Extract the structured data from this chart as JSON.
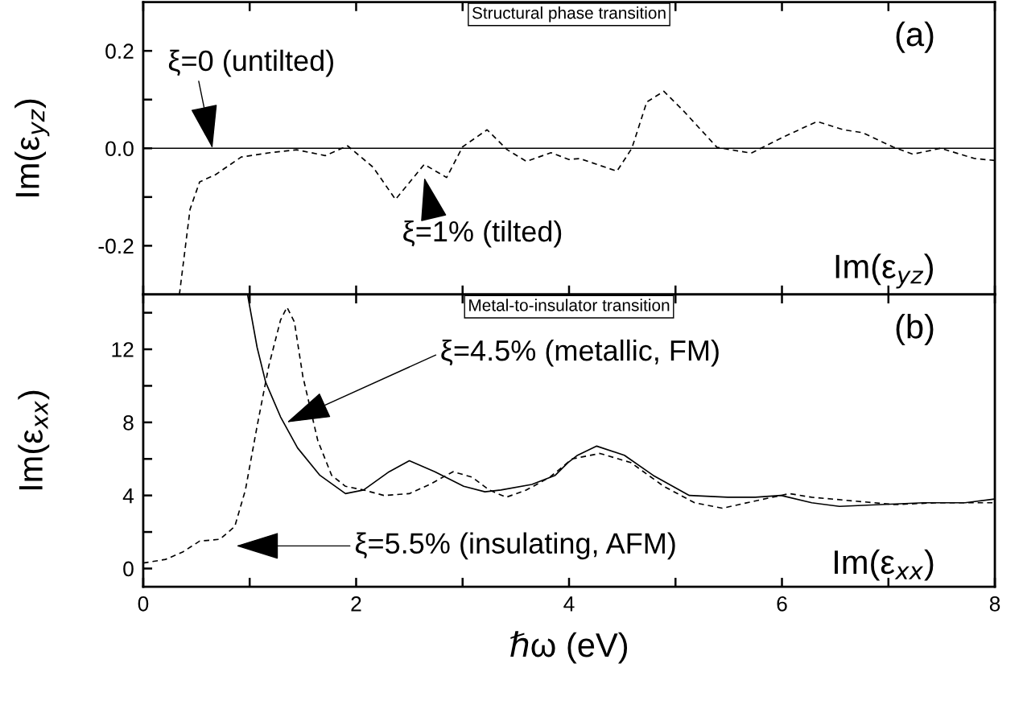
{
  "chart_data": [
    {
      "type": "line",
      "ylabel": "Im(ε$_{yz}$)",
      "xlim": [
        0,
        8
      ],
      "ylim": [
        -0.3,
        0.3
      ],
      "xticks": [
        0,
        {
          "value": 1,
          "label": null
        },
        2,
        {
          "value": 3,
          "label": null
        },
        4,
        {
          "value": 5,
          "label": null
        },
        6,
        {
          "value": 7,
          "label": null
        },
        8
      ],
      "yticks": [
        {
          "value": -0.2,
          "label": "-0.2"
        },
        {
          "value": -0.1,
          "label": null
        },
        {
          "value": 0.0,
          "label": "0.0"
        },
        {
          "value": 0.1,
          "label": null
        },
        {
          "value": 0.2,
          "label": "0.2"
        }
      ],
      "tick_labels": "y",
      "series": [
        {
          "color": "#000000",
          "line_style": "solid",
          "x": [
            0,
            8
          ],
          "values": [
            0,
            0
          ]
        },
        {
          "color": "#000000",
          "line_style": "dashed",
          "x": [
            0.34,
            0.44,
            0.53,
            0.68,
            0.92,
            1.19,
            1.44,
            1.71,
            1.92,
            2.16,
            2.37,
            2.64,
            2.85,
            3.0,
            3.23,
            3.42,
            3.6,
            3.83,
            4.0,
            4.1,
            4.45,
            4.59,
            4.73,
            4.89,
            5.07,
            5.39,
            5.71,
            6.03,
            6.33,
            6.58,
            6.76,
            7.05,
            7.23,
            7.49,
            7.81,
            8.0
          ],
          "values": [
            -0.3,
            -0.125,
            -0.069,
            -0.054,
            -0.018,
            -0.009,
            -0.003,
            -0.015,
            0.005,
            -0.039,
            -0.105,
            -0.033,
            -0.06,
            0.003,
            0.038,
            -0.003,
            -0.027,
            -0.009,
            -0.023,
            -0.021,
            -0.047,
            0.0,
            0.095,
            0.117,
            0.078,
            0.002,
            -0.01,
            0.025,
            0.055,
            0.038,
            0.032,
            0.002,
            -0.012,
            0.0,
            -0.021,
            -0.025
          ]
        }
      ],
      "annotations": [
        "Structural phase transition",
        "(a)",
        "Im(ε$_{yz}$)",
        {
          "text": "ξ=0 (untilted)",
          "x": 0.65,
          "y": 0.0
        },
        "ξ=1% (tilted)"
      ]
    },
    {
      "type": "line",
      "xlabel": "ℏω (eV)",
      "ylabel": "Im(ε$_{xx}$)",
      "xlim": [
        0,
        8
      ],
      "ylim": [
        -1,
        15
      ],
      "xticks": [
        0,
        {
          "value": 1,
          "label": null
        },
        2,
        {
          "value": 3,
          "label": null
        },
        4,
        {
          "value": 5,
          "label": null
        },
        6,
        {
          "value": 7,
          "label": null
        },
        8
      ],
      "yticks": [
        0,
        {
          "value": 2,
          "label": null
        },
        4,
        {
          "value": 6,
          "label": null
        },
        8,
        {
          "value": 10,
          "label": null
        },
        12,
        {
          "value": 14,
          "label": null
        }
      ],
      "series": [
        {
          "color": "#000000",
          "line_style": "solid",
          "x": [
            0.98,
            1.07,
            1.15,
            1.29,
            1.45,
            1.66,
            1.9,
            2.07,
            2.31,
            2.5,
            2.74,
            3.01,
            3.21,
            3.36,
            3.65,
            3.87,
            3.99,
            4.08,
            4.26,
            4.52,
            4.79,
            5.13,
            5.49,
            5.75,
            5.99,
            6.28,
            6.54,
            6.93,
            7.33,
            7.72,
            7.99
          ],
          "values": [
            15.0,
            12.1,
            10.2,
            8.3,
            6.6,
            5.1,
            4.1,
            4.3,
            5.3,
            5.9,
            5.3,
            4.5,
            4.2,
            4.3,
            4.6,
            5.1,
            5.8,
            6.2,
            6.7,
            6.2,
            5.1,
            4.0,
            3.9,
            3.9,
            4.0,
            3.6,
            3.4,
            3.5,
            3.6,
            3.6,
            3.8
          ]
        },
        {
          "color": "#000000",
          "line_style": "dashed",
          "x": [
            0.0,
            0.21,
            0.37,
            0.53,
            0.72,
            0.86,
            0.96,
            1.07,
            1.18,
            1.29,
            1.35,
            1.42,
            1.5,
            1.64,
            1.77,
            1.9,
            2.07,
            2.26,
            2.5,
            2.69,
            2.91,
            3.09,
            3.25,
            3.41,
            3.6,
            3.82,
            4.03,
            4.29,
            4.58,
            4.89,
            5.18,
            5.44,
            5.75,
            6.07,
            6.28,
            6.67,
            7.06,
            7.45,
            7.99
          ],
          "values": [
            0.3,
            0.5,
            0.9,
            1.5,
            1.6,
            2.3,
            4.3,
            7.8,
            11.1,
            13.6,
            14.3,
            13.5,
            10.5,
            7.0,
            5.1,
            4.5,
            4.3,
            4.0,
            4.1,
            4.6,
            5.3,
            5.0,
            4.3,
            3.9,
            4.3,
            5.0,
            6.0,
            6.3,
            5.8,
            4.5,
            3.6,
            3.3,
            3.7,
            4.1,
            3.9,
            3.7,
            3.5,
            3.6,
            3.6
          ]
        }
      ],
      "annotations": [
        "Metal-to-insulator transition",
        "(b)",
        "Im(ε$_{xx}$)",
        {
          "text": "ξ=4.5% (metallic, FM)",
          "x": 1.35,
          "y": 8.0
        },
        "ξ=5.5% (insulating, AFM)"
      ]
    }
  ]
}
